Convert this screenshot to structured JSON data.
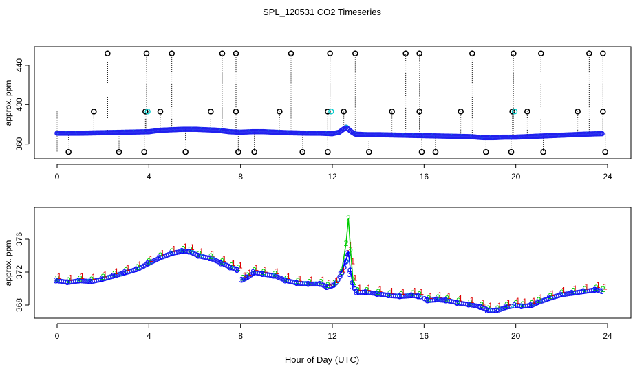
{
  "title": "SPL_120531  CO2 Timeseries",
  "xlabel": "Hour of Day (UTC)",
  "colors": {
    "black": "#000000",
    "red": "#dd0000",
    "green": "#00cc00",
    "blue": "#0000ff",
    "cyan": "#00cccc",
    "bluepoints": "#2020ee"
  },
  "chart_data": [
    {
      "type": "scatter",
      "ylabel": "approx. ppm",
      "xlim": [
        0,
        24
      ],
      "ylim": [
        350,
        456
      ],
      "x_ticks": [
        "0",
        "4",
        "8",
        "12",
        "16",
        "20",
        "24"
      ],
      "y_ticks": [
        "360",
        "400",
        "440"
      ],
      "y_tick_values": [
        360,
        400,
        440
      ],
      "baseline": {
        "x": [
          0,
          1,
          2,
          3,
          4,
          4.5,
          5,
          5.5,
          6,
          6.5,
          7,
          7.5,
          8,
          8.5,
          9,
          10,
          11,
          11.5,
          12,
          12.3,
          12.6,
          12.8,
          13,
          13.5,
          14,
          15,
          16,
          17,
          18,
          18.6,
          19,
          19.5,
          20,
          21,
          22,
          22.5,
          23,
          23.7
        ],
        "y": [
          371,
          371,
          371.5,
          372,
          372.5,
          374,
          374.5,
          375,
          375,
          374.5,
          374,
          372.5,
          372,
          372.5,
          372.5,
          371.5,
          371,
          371,
          370.5,
          372,
          377,
          373,
          370,
          369.5,
          369.5,
          369,
          368.5,
          368,
          367.5,
          366.5,
          366.5,
          367,
          367,
          368,
          369,
          369.5,
          370,
          370.5
        ]
      },
      "spikes_high": [
        2.2,
        3.9,
        5.0,
        7.2,
        7.8,
        10.2,
        11.9,
        13.0,
        15.2,
        15.8,
        18.1,
        19.9,
        21.1,
        23.2,
        23.8
      ],
      "spikes_mid": [
        1.6,
        3.85,
        4.5,
        6.7,
        7.8,
        9.7,
        11.8,
        12.5,
        14.6,
        15.8,
        17.6,
        19.85,
        20.5,
        22.7,
        23.8
      ],
      "spikes_low": [
        0.5,
        2.7,
        3.8,
        5.6,
        7.9,
        8.6,
        10.7,
        11.8,
        13.6,
        15.9,
        16.5,
        18.7,
        19.8,
        21.2,
        23.9
      ],
      "spike_low_value": 352,
      "spike_mid_value": 393,
      "spike_high_value": 452
    },
    {
      "type": "scatter",
      "ylabel": "approx. ppm",
      "xlim": [
        0,
        24
      ],
      "ylim": [
        367,
        379.5
      ],
      "x_ticks": [
        "0",
        "4",
        "8",
        "12",
        "16",
        "20",
        "24"
      ],
      "y_ticks": [
        "368",
        "372",
        "376"
      ],
      "y_tick_values": [
        368,
        372,
        376
      ],
      "series": [
        {
          "name": "1",
          "offset": 0.3,
          "x": [
            0,
            0.5,
            1,
            1.5,
            2,
            2.5,
            3,
            3.5,
            4,
            4.5,
            5,
            5.5,
            5.8,
            6.2,
            6.7,
            7.2,
            7.6,
            7.9,
            8.1,
            8.3,
            8.6,
            9,
            9.5,
            10,
            10.5,
            11,
            11.5,
            11.8,
            12.1,
            12.4,
            12.6,
            12.7,
            12.8,
            12.9,
            13.1,
            13.5,
            14,
            14.5,
            15,
            15.5,
            15.8,
            16.2,
            16.6,
            17,
            17.5,
            18,
            18.5,
            18.8,
            19.2,
            19.6,
            20,
            20.3,
            20.7,
            21,
            21.5,
            22,
            22.5,
            23,
            23.5,
            23.8
          ],
          "y": [
            371.2,
            371.0,
            371.2,
            371.1,
            371.4,
            371.8,
            372.2,
            372.6,
            373.3,
            374.0,
            374.5,
            374.8,
            374.7,
            374.2,
            373.9,
            373.3,
            372.8,
            372.5,
            371.3,
            371.6,
            372.2,
            372.0,
            371.8,
            371.2,
            370.9,
            370.8,
            370.8,
            370.4,
            370.7,
            372.0,
            374.0,
            375.0,
            373.0,
            371.0,
            369.8,
            369.8,
            369.6,
            369.4,
            369.3,
            369.4,
            369.3,
            368.8,
            368.9,
            368.8,
            368.5,
            368.3,
            368.0,
            367.6,
            367.6,
            368.0,
            368.2,
            368.1,
            368.2,
            368.6,
            369.1,
            369.5,
            369.7,
            369.9,
            370.1,
            369.9
          ]
        },
        {
          "name": "2",
          "offset": 0.0,
          "x": [
            0,
            0.5,
            1,
            1.5,
            2,
            2.5,
            3,
            3.5,
            4,
            4.5,
            5,
            5.5,
            5.8,
            6.2,
            6.7,
            7.2,
            7.6,
            7.9,
            8.1,
            8.3,
            8.6,
            9,
            9.5,
            10,
            10.5,
            11,
            11.5,
            11.8,
            12.1,
            12.4,
            12.6,
            12.7,
            12.8,
            12.9,
            13.1,
            13.5,
            14,
            14.5,
            15,
            15.5,
            15.8,
            16.2,
            16.6,
            17,
            17.5,
            18,
            18.5,
            18.8,
            19.2,
            19.6,
            20,
            20.3,
            20.7,
            21,
            21.5,
            22,
            22.5,
            23,
            23.5,
            23.8
          ],
          "y": [
            371.2,
            371.0,
            371.2,
            371.1,
            371.4,
            371.8,
            372.2,
            372.6,
            373.3,
            374.0,
            374.5,
            374.8,
            374.7,
            374.2,
            373.9,
            373.3,
            372.8,
            372.5,
            371.3,
            371.6,
            372.2,
            372.0,
            371.8,
            371.2,
            370.9,
            370.8,
            370.8,
            370.4,
            370.7,
            372.0,
            375.5,
            378.5,
            374.5,
            371.0,
            369.8,
            369.8,
            369.6,
            369.4,
            369.3,
            369.4,
            369.3,
            368.8,
            368.9,
            368.8,
            368.5,
            368.3,
            368.0,
            367.6,
            367.6,
            368.0,
            368.2,
            368.1,
            368.2,
            368.6,
            369.1,
            369.5,
            369.7,
            369.9,
            370.1,
            369.9
          ]
        },
        {
          "name": "3",
          "offset": -0.25,
          "x": [
            0,
            0.5,
            1,
            1.5,
            2,
            2.5,
            3,
            3.5,
            4,
            4.5,
            5,
            5.5,
            5.8,
            6.2,
            6.7,
            7.2,
            7.6,
            7.9,
            8.1,
            8.3,
            8.6,
            9,
            9.5,
            10,
            10.5,
            11,
            11.5,
            11.8,
            12.1,
            12.4,
            12.6,
            12.7,
            12.8,
            12.9,
            13.1,
            13.5,
            14,
            14.5,
            15,
            15.5,
            15.8,
            16.2,
            16.6,
            17,
            17.5,
            18,
            18.5,
            18.8,
            19.2,
            19.6,
            20,
            20.3,
            20.7,
            21,
            21.5,
            22,
            22.5,
            23,
            23.5,
            23.8
          ],
          "y": [
            371.2,
            371.0,
            371.2,
            371.1,
            371.4,
            371.8,
            372.2,
            372.6,
            373.3,
            374.0,
            374.5,
            374.8,
            374.7,
            374.2,
            373.9,
            373.3,
            372.8,
            372.5,
            371.3,
            371.6,
            372.2,
            372.0,
            371.8,
            371.2,
            370.9,
            370.8,
            370.8,
            370.4,
            370.7,
            372.0,
            373.5,
            374.5,
            372.0,
            370.5,
            369.8,
            369.8,
            369.6,
            369.4,
            369.3,
            369.4,
            369.3,
            368.8,
            368.9,
            368.8,
            368.5,
            368.3,
            368.0,
            367.6,
            367.6,
            368.0,
            368.2,
            368.1,
            368.2,
            368.6,
            369.1,
            369.5,
            369.7,
            369.9,
            370.1,
            369.9
          ]
        }
      ]
    }
  ]
}
